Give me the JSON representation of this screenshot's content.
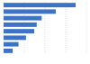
{
  "chart_data": {
    "type": "bar",
    "orientation": "horizontal",
    "categories": [
      null,
      null,
      null,
      null,
      null,
      null,
      null,
      null
    ],
    "values": [
      87,
      63,
      46,
      40,
      37,
      27,
      18,
      11
    ],
    "color": "#3b73c8",
    "xlim": [
      0,
      100
    ],
    "xticks": [
      0,
      25,
      50,
      75,
      100
    ],
    "grid": true,
    "tick_labels": false
  }
}
